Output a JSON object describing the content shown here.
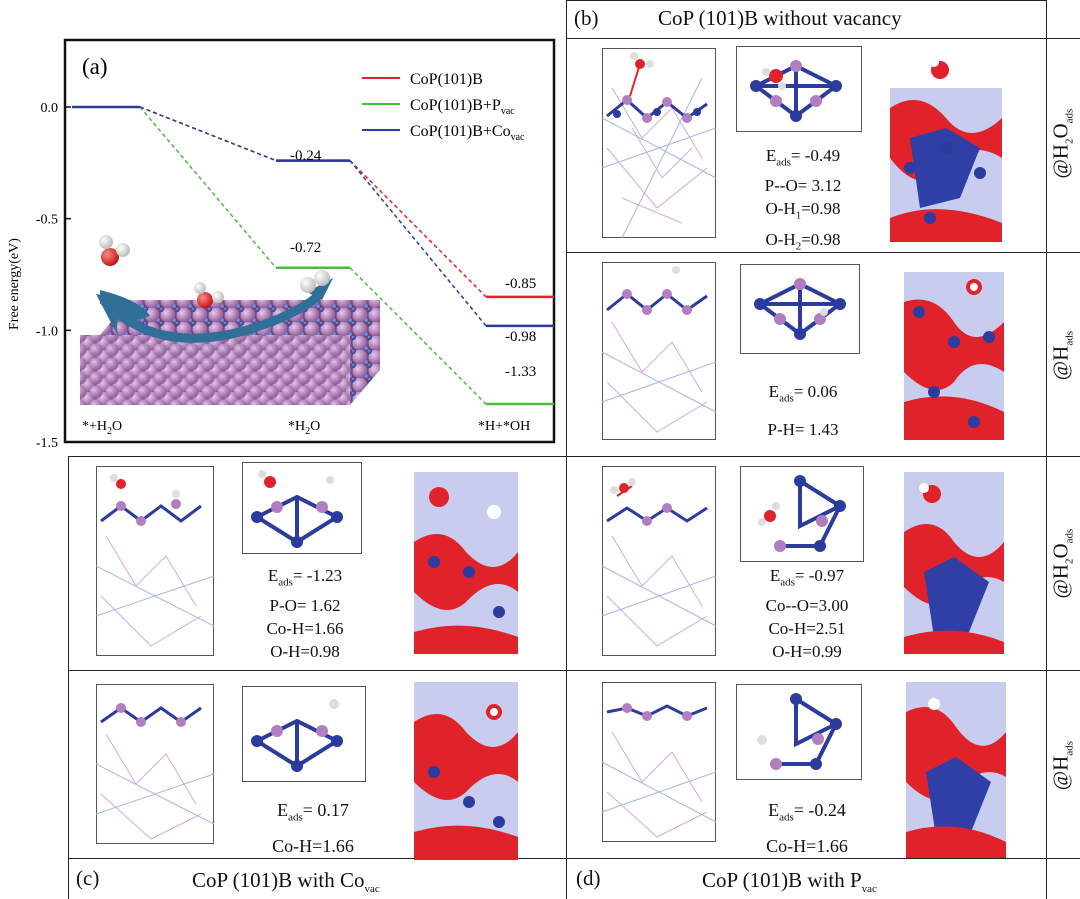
{
  "panel_a": {
    "label": "(a)",
    "ylabel": "Free energy(eV)",
    "yticks": [
      "0.0",
      "-0.5",
      "-1.0",
      "-1.5"
    ],
    "xlabels": [
      "*+H2O",
      "*H2O",
      "*H+*OH"
    ],
    "legend": [
      {
        "label": "CoP(101)B",
        "color": "#e0232a"
      },
      {
        "label": "CoP(101)B+P",
        "sub": "vac",
        "color": "#4cba3c"
      },
      {
        "label": "CoP(101)B+Co",
        "sub": "vac",
        "color": "#2b3b9e"
      }
    ],
    "value_labels": [
      "-0.24",
      "-0.72",
      "-0.85",
      "-0.98",
      "-1.33"
    ]
  },
  "chart_data": {
    "type": "line",
    "categories": [
      "*+H2O",
      "*H2O",
      "*H+*OH"
    ],
    "ylabel": "Free energy(eV)",
    "ylim": [
      -1.5,
      0.3
    ],
    "series": [
      {
        "name": "CoP(101)B",
        "values": [
          0.0,
          -0.24,
          -0.85
        ],
        "color": "#e0232a"
      },
      {
        "name": "CoP(101)B+Pvac",
        "values": [
          0.0,
          -0.72,
          -1.33
        ],
        "color": "#4cba3c"
      },
      {
        "name": "CoP(101)B+Covac",
        "values": [
          0.0,
          -0.24,
          -0.98
        ],
        "color": "#2b3b9e"
      }
    ]
  },
  "panel_b": {
    "label": "(b)",
    "title": "CoP (101)B without vacancy",
    "row1_lines": [
      "E_ads= -0.49",
      "P--O= 3.12",
      "O-H1=0.98",
      "O-H2=0.98"
    ],
    "row2_lines": [
      "E_ads= 0.06",
      "P-H= 1.43"
    ]
  },
  "panel_c": {
    "label": "(c)",
    "title": "CoP (101)B with Co",
    "title_sub": "vac",
    "row1_lines": [
      "E_ads= -1.23",
      "P-O= 1.62",
      "Co-H=1.66",
      "O-H=0.98"
    ],
    "row2_lines": [
      "E_ads= 0.17",
      "Co-H=1.66"
    ]
  },
  "panel_d": {
    "label": "(d)",
    "title": "CoP (101)B with P",
    "title_sub": "vac",
    "row1_lines": [
      "E_ads= -0.97",
      "Co--O=3.00",
      "Co-H=2.51",
      "O-H=0.99"
    ],
    "row2_lines": [
      "E_ads= -0.24",
      "Co-H=1.66"
    ]
  },
  "side_labels": [
    "@H2Oads",
    "@Hads",
    "@H2Oads",
    "@Hads"
  ]
}
